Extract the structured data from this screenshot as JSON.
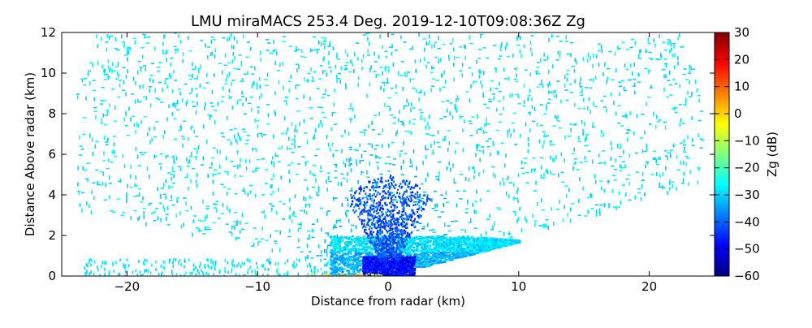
{
  "chart_data": {
    "type": "heatmap",
    "plot_kind": "radar RHI scan (range-height)",
    "title": "LMU miraMACS 253.4 Deg. 2019-12-10T09:08:36Z  Zg",
    "xlabel": "Distance from radar (km)",
    "ylabel": "Distance Above radar  (km)",
    "xlim": [
      -25,
      25
    ],
    "ylim": [
      0,
      12
    ],
    "xticks": [
      -20,
      -10,
      0,
      10,
      20
    ],
    "xtick_labels": [
      "−20",
      "−10",
      "0",
      "10",
      "20"
    ],
    "yticks": [
      0,
      2,
      4,
      6,
      8,
      10,
      12
    ],
    "ytick_labels": [
      "0",
      "2",
      "4",
      "6",
      "8",
      "10",
      "12"
    ],
    "colorbar": {
      "label": "Zg (dB)",
      "range": [
        -60,
        30
      ],
      "ticks": [
        -60,
        -50,
        -40,
        -30,
        -20,
        -10,
        0,
        10,
        20,
        30
      ],
      "tick_labels": [
        "−60",
        "−50",
        "−40",
        "−30",
        "−20",
        "−10",
        "0",
        "10",
        "20",
        "30"
      ],
      "colormap": "jet",
      "colors": [
        "#00007f",
        "#0000ff",
        "#007fff",
        "#00ffff",
        "#7fff7f",
        "#ffff00",
        "#ff7f00",
        "#ff0000",
        "#7f0000"
      ]
    },
    "fields": [
      {
        "name": "noise-background",
        "distance_km": [
          -24,
          24
        ],
        "height_km": [
          0,
          12
        ],
        "zg_db": -28
      },
      {
        "name": "low-cloud-layer",
        "distance_km": [
          -4.5,
          10
        ],
        "height_km": [
          0,
          2
        ],
        "zg_db": -33
      },
      {
        "name": "near-radar-core",
        "distance_km": [
          -2,
          2
        ],
        "height_km": [
          0,
          1
        ],
        "zg_db": -48
      },
      {
        "name": "near-radar-beam",
        "distance_km": [
          -1,
          1
        ],
        "height_km": [
          1,
          4
        ],
        "zg_db": -42
      }
    ],
    "grid": false,
    "legend": "none"
  }
}
